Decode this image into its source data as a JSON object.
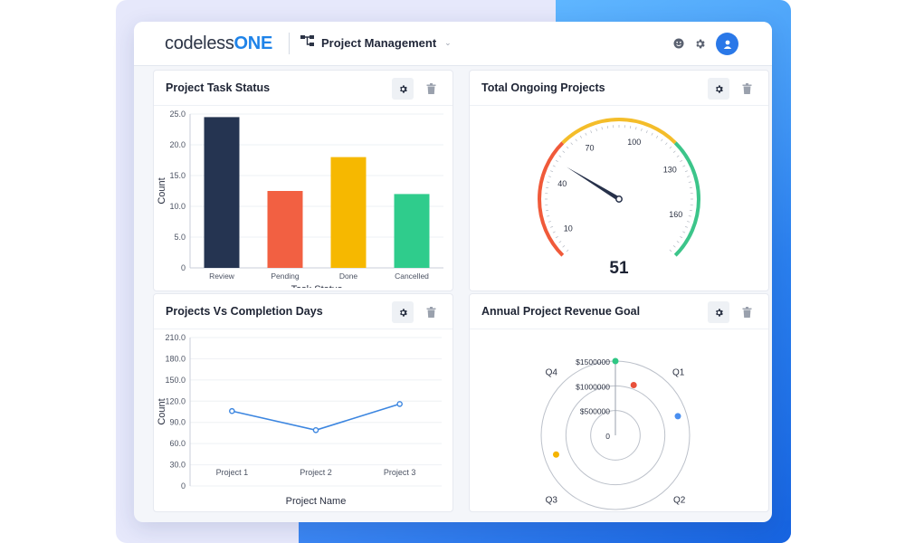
{
  "app": {
    "logo_part1": "codeless",
    "logo_part2": "ONE",
    "project_name": "Project Management",
    "chevron": "⌄",
    "icons": [
      "project-tree-icon",
      "smile-icon",
      "gear-icon",
      "user-icon"
    ]
  },
  "colors": {
    "brand_blue": "#1f83e8",
    "review": "#253451",
    "pending": "#f26042",
    "done": "#f6b800",
    "cancelled": "#2fcc8c",
    "line": "#3c86e0"
  },
  "cards": {
    "task_status": {
      "title": "Project Task Status"
    },
    "ongoing": {
      "title": "Total Ongoing Projects"
    },
    "completion": {
      "title": "Projects Vs Completion Days"
    },
    "revenue": {
      "title": "Annual Project Revenue Goal"
    }
  },
  "chart_data": [
    {
      "type": "bar",
      "title": "Project Task Status",
      "categories": [
        "Review",
        "Pending",
        "Done",
        "Cancelled"
      ],
      "values": [
        24.5,
        12.5,
        18.0,
        12.0
      ],
      "colors": [
        "#253451",
        "#f26042",
        "#f6b800",
        "#2fcc8c"
      ],
      "xlabel": "Task Status",
      "ylabel": "Count",
      "ylim": [
        0,
        25
      ],
      "yticks": [
        "0",
        "5.0",
        "10.0",
        "15.0",
        "20.0",
        "25.0"
      ],
      "ytick_values": [
        0,
        5,
        10,
        15,
        20,
        25
      ]
    },
    {
      "type": "gauge",
      "title": "Total Ongoing Projects",
      "value": 51,
      "value_label": "51",
      "range": [
        0,
        180
      ],
      "ticks": [
        "10",
        "40",
        "70",
        "100",
        "130",
        "160"
      ],
      "tick_values": [
        10,
        40,
        70,
        100,
        130,
        160
      ],
      "bands": [
        {
          "from": 0,
          "to": 60,
          "color": "#f05a3a"
        },
        {
          "from": 60,
          "to": 120,
          "color": "#f4bd2a"
        },
        {
          "from": 120,
          "to": 180,
          "color": "#3cc58a"
        }
      ]
    },
    {
      "type": "line",
      "title": "Projects Vs Completion Days",
      "categories": [
        "Project 1",
        "Project 2",
        "Project 3"
      ],
      "values": [
        106,
        79,
        116
      ],
      "xlabel": "Project Name",
      "ylabel": "Count",
      "ylim": [
        0,
        210
      ],
      "yticks": [
        "0",
        "30.0",
        "60.0",
        "90.0",
        "120.0",
        "150.0",
        "180.0",
        "210.0"
      ],
      "ytick_values": [
        0,
        30,
        60,
        90,
        120,
        150,
        180,
        210
      ]
    },
    {
      "type": "polar",
      "title": "Annual Project Revenue Goal",
      "categories": [
        "Q1",
        "Q2",
        "Q3",
        "Q4"
      ],
      "values": [
        1080000,
        1320000,
        1500000,
        1260000
      ],
      "colors": [
        "#e8503a",
        "#4a8ff0",
        "#2fc784",
        "#f5b400"
      ],
      "rmax": 1500000,
      "rings": [
        "0",
        "$500000",
        "$1000000",
        "$1500000"
      ],
      "ring_values": [
        0,
        500000,
        1000000,
        1500000
      ]
    }
  ]
}
